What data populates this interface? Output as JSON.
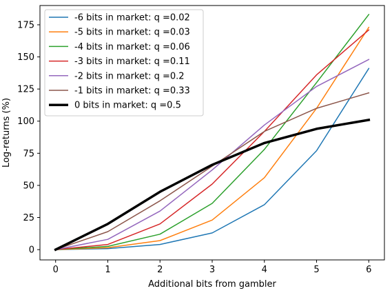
{
  "chart_data": {
    "type": "line",
    "title": "",
    "xlabel": "Additional bits from gambler",
    "ylabel": "Log-returns (%)",
    "x": [
      0,
      1,
      2,
      3,
      4,
      5,
      6
    ],
    "xlim": [
      -0.3,
      6.3
    ],
    "ylim": [
      -8,
      190
    ],
    "xticks": [
      0,
      1,
      2,
      3,
      4,
      5,
      6
    ],
    "yticks": [
      0,
      25,
      50,
      75,
      100,
      125,
      150,
      175
    ],
    "grid": false,
    "legend_position": "top-left",
    "series": [
      {
        "name": "-6 bits in market: q =0.02",
        "color": "#1f77b4",
        "width": 1.5,
        "values": [
          0,
          0.8,
          4,
          13,
          35,
          77,
          141
        ]
      },
      {
        "name": "-5 bits in market: q =0.03",
        "color": "#ff7f0e",
        "width": 1.5,
        "values": [
          0,
          1.5,
          7,
          23,
          56,
          110,
          173
        ]
      },
      {
        "name": "-4 bits in market: q =0.06",
        "color": "#2ca02c",
        "width": 1.5,
        "values": [
          0,
          2.5,
          12,
          36,
          78,
          130,
          183
        ]
      },
      {
        "name": "-3 bits in market: q =0.11",
        "color": "#d62728",
        "width": 1.5,
        "values": [
          0,
          4,
          20,
          51,
          92,
          136,
          171
        ]
      },
      {
        "name": "-2 bits in market: q =0.2",
        "color": "#9467bd",
        "width": 1.5,
        "values": [
          0,
          8,
          30,
          62,
          97,
          127,
          148
        ]
      },
      {
        "name": "-1 bits in market: q =0.33",
        "color": "#8c564b",
        "width": 1.5,
        "values": [
          0,
          14,
          38,
          65,
          92,
          110,
          122
        ]
      },
      {
        "name": "0 bits in market: q =0.5",
        "color": "#000000",
        "width": 3.5,
        "values": [
          0,
          20,
          45,
          66,
          83,
          94,
          101
        ]
      }
    ]
  }
}
